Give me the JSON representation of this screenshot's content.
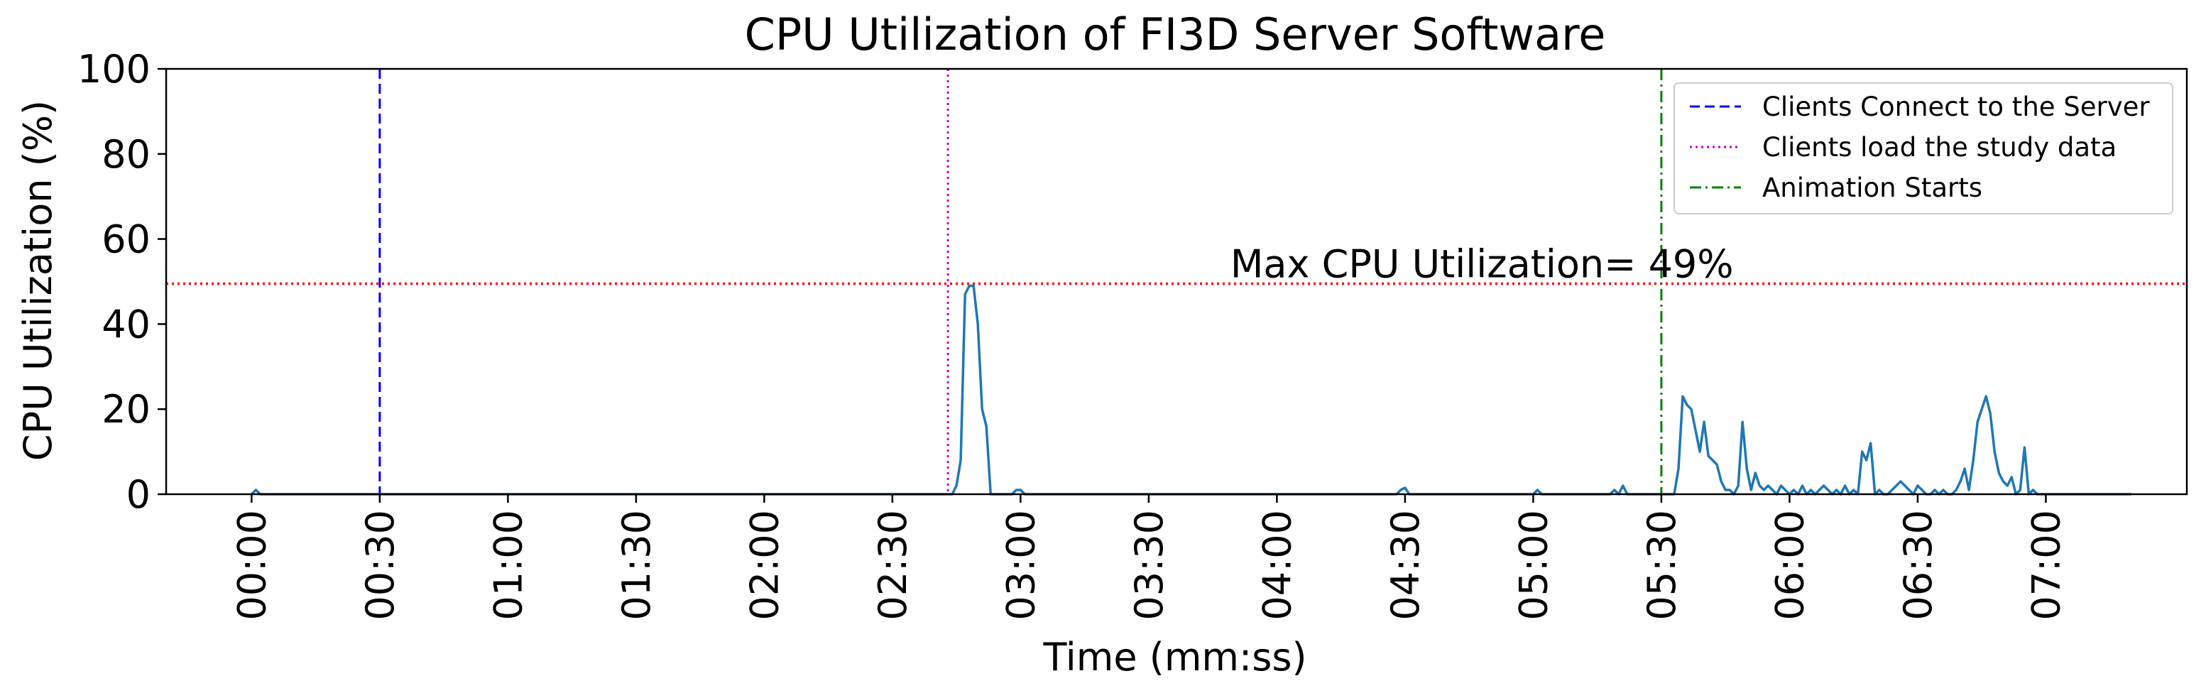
{
  "chart_data": {
    "type": "line",
    "title": "CPU Utilization of FI3D Server Software",
    "xlabel": "Time (mm:ss)",
    "ylabel": "CPU Utilization (%)",
    "xlim": [
      -20,
      453
    ],
    "ylim": [
      0,
      100
    ],
    "yticks": [
      0,
      20,
      40,
      60,
      80,
      100
    ],
    "xticks": [
      {
        "value": 0,
        "label": "00:00"
      },
      {
        "value": 30,
        "label": "00:30"
      },
      {
        "value": 60,
        "label": "01:00"
      },
      {
        "value": 90,
        "label": "01:30"
      },
      {
        "value": 120,
        "label": "02:00"
      },
      {
        "value": 150,
        "label": "02:30"
      },
      {
        "value": 180,
        "label": "03:00"
      },
      {
        "value": 210,
        "label": "03:30"
      },
      {
        "value": 240,
        "label": "04:00"
      },
      {
        "value": 270,
        "label": "04:30"
      },
      {
        "value": 300,
        "label": "05:00"
      },
      {
        "value": 330,
        "label": "05:30"
      },
      {
        "value": 360,
        "label": "06:00"
      },
      {
        "value": 390,
        "label": "06:30"
      },
      {
        "value": 420,
        "label": "07:00"
      }
    ],
    "grid": false,
    "legend_position": "top-right",
    "series": [
      {
        "color": "#1f77b4",
        "x": [
          0,
          1,
          2,
          5,
          30,
          60,
          90,
          120,
          150,
          164,
          165,
          166,
          167,
          168,
          169,
          170,
          171,
          172,
          173,
          174,
          175,
          178,
          179,
          180,
          181,
          210,
          240,
          268,
          269,
          270,
          271,
          272,
          300,
          301,
          302,
          310,
          318,
          319,
          320,
          321,
          322,
          330,
          333,
          334,
          335,
          336,
          337,
          338,
          339,
          340,
          341,
          342,
          343,
          344,
          345,
          346,
          347,
          348,
          349,
          350,
          351,
          352,
          353,
          354,
          355,
          356,
          357,
          358,
          359,
          360,
          361,
          362,
          363,
          364,
          365,
          366,
          367,
          368,
          369,
          370,
          371,
          372,
          373,
          374,
          375,
          376,
          377,
          378,
          379,
          380,
          381,
          382,
          383,
          384,
          385,
          386,
          387,
          388,
          389,
          390,
          391,
          392,
          393,
          394,
          395,
          396,
          397,
          398,
          399,
          400,
          401,
          402,
          403,
          404,
          405,
          406,
          407,
          408,
          409,
          410,
          411,
          412,
          413,
          414,
          415,
          416,
          417,
          418,
          419,
          420,
          421,
          422,
          423,
          425,
          430,
          440,
          436
        ],
        "y": [
          0,
          1,
          0,
          0,
          0,
          0,
          0,
          0,
          0,
          0,
          2,
          8,
          47,
          49,
          49,
          40,
          20,
          16,
          0,
          0,
          0,
          0,
          1,
          1,
          0,
          0,
          0,
          0,
          1,
          1.5,
          0,
          0,
          0,
          1,
          0,
          0,
          0,
          1,
          0,
          2,
          0,
          0,
          0,
          6,
          23,
          21,
          20,
          15,
          10,
          17,
          9,
          8,
          7,
          3,
          1,
          1,
          0,
          2,
          17,
          6,
          1,
          5,
          2,
          1,
          2,
          1,
          0,
          2,
          1,
          0,
          1,
          0,
          2,
          0,
          1,
          0,
          1,
          2,
          1,
          0,
          1,
          0,
          2,
          0,
          1,
          0,
          10,
          8,
          12,
          0,
          1,
          0,
          0,
          1,
          2,
          3,
          2,
          1,
          0,
          2,
          1,
          0,
          0,
          1,
          0,
          1,
          0,
          0,
          1,
          3,
          6,
          1,
          8,
          17,
          20,
          23,
          19,
          10,
          5,
          3,
          2,
          4,
          0,
          1,
          11,
          0,
          1,
          0,
          0,
          0,
          0,
          0,
          0,
          0,
          0,
          0,
          0
        ]
      }
    ],
    "vlines": [
      {
        "x": 30,
        "color": "#0000ff",
        "style": "dashed",
        "label": "Clients Connect to the Server"
      },
      {
        "x": 163,
        "color": "#bf00bf",
        "style": "dotted",
        "label": "Clients load the study data"
      },
      {
        "x": 330,
        "color": "#008000",
        "style": "dashdot",
        "label": "Animation Starts"
      }
    ],
    "hline": {
      "y": 49.5,
      "color": "#ff0000",
      "style": "dotted"
    },
    "annotation": {
      "text": "Max CPU Utilization= 49%",
      "x": 288,
      "y": 51
    }
  }
}
